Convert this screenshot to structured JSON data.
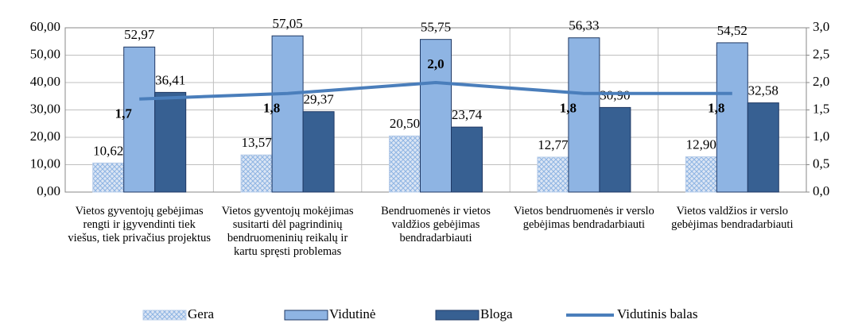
{
  "chart_data": {
    "type": "bar",
    "categories": [
      "Vietos gyventojų gebėjimas rengti ir įgyvendinti tiek viešus, tiek privačius projektus",
      "Vietos gyventojų mokėjimas susitarti dėl pagrindinių bendruomeninių reikalų ir kartu spręsti problemas",
      "Bendruomenės ir vietos valdžios gebėjimas bendradarbiauti",
      "Vietos bendruomenės ir verslo gebėjimas bendradarbiauti",
      "Vietos valdžios ir verslo gebėjimas bendradarbiauti"
    ],
    "series": [
      {
        "name": "Gera",
        "type": "bar",
        "color": "#b9cde9",
        "values": [
          10.62,
          13.57,
          20.5,
          12.77,
          12.9
        ],
        "value_labels": [
          "10,62",
          "13,57",
          "20,50",
          "12,77",
          "12,90"
        ]
      },
      {
        "name": "Vidutinė",
        "type": "bar",
        "color": "#8eb4e3",
        "values": [
          52.97,
          57.05,
          55.75,
          56.33,
          54.52
        ],
        "value_labels": [
          "52,97",
          "57,05",
          "55,75",
          "56,33",
          "54,52"
        ]
      },
      {
        "name": "Bloga",
        "type": "bar",
        "color": "#376092",
        "values": [
          36.41,
          29.37,
          23.74,
          30.9,
          32.58
        ],
        "value_labels": [
          "36,41",
          "29,37",
          "23,74",
          "30,90",
          "32,58"
        ]
      },
      {
        "name": "Vidutinis balas",
        "type": "line",
        "axis": "y2",
        "color": "#4a7ebb",
        "values": [
          1.7,
          1.8,
          2.0,
          1.8,
          1.8
        ],
        "value_labels": [
          "1,7",
          "1,8",
          "2,0",
          "1,8",
          "1,8"
        ]
      }
    ],
    "ylim": [
      0,
      60
    ],
    "yticks": [
      {
        "value": 0,
        "label": "0,00"
      },
      {
        "value": 10,
        "label": "10,00"
      },
      {
        "value": 20,
        "label": "20,00"
      },
      {
        "value": 30,
        "label": "30,00"
      },
      {
        "value": 40,
        "label": "40,00"
      },
      {
        "value": 50,
        "label": "50,00"
      },
      {
        "value": 60,
        "label": "60,00"
      }
    ],
    "y2lim": [
      0,
      3
    ],
    "y2ticks": [
      {
        "value": 0,
        "label": "0,0"
      },
      {
        "value": 0.5,
        "label": "0,5"
      },
      {
        "value": 1,
        "label": "1,0"
      },
      {
        "value": 1.5,
        "label": "1,5"
      },
      {
        "value": 2,
        "label": "2,0"
      },
      {
        "value": 2.5,
        "label": "2,5"
      },
      {
        "value": 3,
        "label": "3,0"
      }
    ],
    "grid": true,
    "legend": "bottom"
  }
}
